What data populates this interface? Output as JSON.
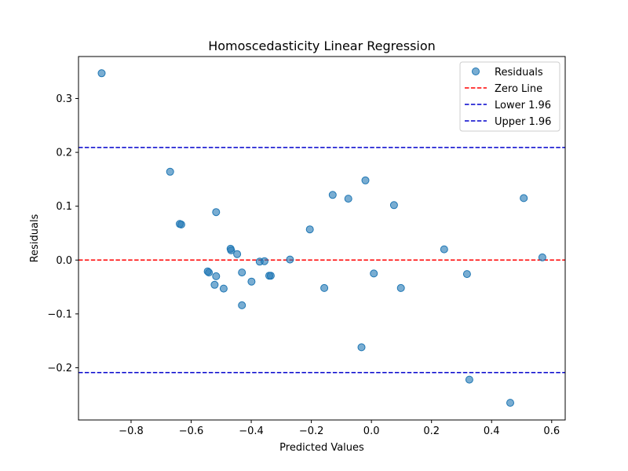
{
  "chart_data": {
    "type": "scatter",
    "title": "Homoscedasticity Linear Regression",
    "xlabel": "Predicted Values",
    "ylabel": "Residuals",
    "xlim": [
      -0.975,
      0.645
    ],
    "ylim": [
      -0.297,
      0.378
    ],
    "x_ticks": [
      -0.8,
      -0.6,
      -0.4,
      -0.2,
      0.0,
      0.2,
      0.4,
      0.6
    ],
    "x_tick_labels": [
      "−0.8",
      "−0.6",
      "−0.4",
      "−0.2",
      "0.0",
      "0.2",
      "0.4",
      "0.6"
    ],
    "y_ticks": [
      -0.2,
      -0.1,
      0.0,
      0.1,
      0.2,
      0.3
    ],
    "y_tick_labels": [
      "−0.2",
      "−0.1",
      "0.0",
      "0.1",
      "0.2",
      "0.3"
    ],
    "grid": false,
    "legend_position": "top-right",
    "series": [
      {
        "name": "Residuals",
        "color": "#1f77b4",
        "points": [
          {
            "x": -0.898,
            "y": 0.347
          },
          {
            "x": -0.67,
            "y": 0.164
          },
          {
            "x": -0.638,
            "y": 0.067
          },
          {
            "x": -0.633,
            "y": 0.066
          },
          {
            "x": -0.517,
            "y": 0.089
          },
          {
            "x": -0.545,
            "y": -0.021
          },
          {
            "x": -0.541,
            "y": -0.023
          },
          {
            "x": -0.517,
            "y": -0.03
          },
          {
            "x": -0.522,
            "y": -0.046
          },
          {
            "x": -0.492,
            "y": -0.053
          },
          {
            "x": -0.469,
            "y": 0.021
          },
          {
            "x": -0.467,
            "y": 0.018
          },
          {
            "x": -0.447,
            "y": 0.011
          },
          {
            "x": -0.431,
            "y": -0.023
          },
          {
            "x": -0.431,
            "y": -0.084
          },
          {
            "x": -0.399,
            "y": -0.04
          },
          {
            "x": -0.372,
            "y": -0.003
          },
          {
            "x": -0.356,
            "y": -0.002
          },
          {
            "x": -0.34,
            "y": -0.029
          },
          {
            "x": -0.335,
            "y": -0.029
          },
          {
            "x": -0.271,
            "y": 0.001
          },
          {
            "x": -0.205,
            "y": 0.057
          },
          {
            "x": -0.157,
            "y": -0.052
          },
          {
            "x": -0.129,
            "y": 0.121
          },
          {
            "x": -0.077,
            "y": 0.114
          },
          {
            "x": -0.033,
            "y": -0.162
          },
          {
            "x": -0.02,
            "y": 0.148
          },
          {
            "x": 0.008,
            "y": -0.025
          },
          {
            "x": 0.075,
            "y": 0.102
          },
          {
            "x": 0.098,
            "y": -0.052
          },
          {
            "x": 0.242,
            "y": 0.02
          },
          {
            "x": 0.318,
            "y": -0.026
          },
          {
            "x": 0.326,
            "y": -0.222
          },
          {
            "x": 0.462,
            "y": -0.265
          },
          {
            "x": 0.507,
            "y": 0.115
          },
          {
            "x": 0.569,
            "y": 0.005
          }
        ]
      }
    ],
    "lines": [
      {
        "name": "Zero Line",
        "y": 0.0,
        "color": "#ff0000",
        "style": "dashed"
      },
      {
        "name": "Lower 1.96",
        "y": -0.209,
        "color": "#0000cc",
        "style": "dashed"
      },
      {
        "name": "Upper 1.96",
        "y": 0.209,
        "color": "#0000cc",
        "style": "dashed"
      }
    ]
  }
}
